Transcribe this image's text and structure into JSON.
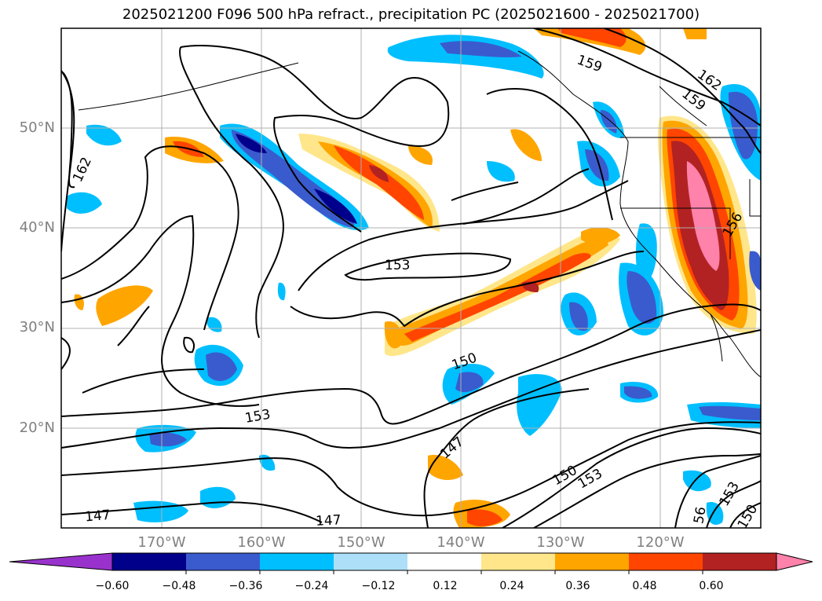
{
  "title": "2025021200 F096 500 hPa refract., precipitation PC (2025021600 - 2025021700)",
  "lon_ticks": [
    "170°W",
    "160°W",
    "150°W",
    "140°W",
    "130°W",
    "120°W"
  ],
  "lat_ticks": [
    "50°N",
    "40°N",
    "30°N",
    "20°N"
  ],
  "colorbar": {
    "labels": [
      "−0.60",
      "−0.48",
      "−0.36",
      "−0.24",
      "−0.12",
      "0.12",
      "0.24",
      "0.36",
      "0.48",
      "0.60"
    ],
    "colors": [
      "#9932CC",
      "#00008B",
      "#3A5BCD",
      "#00BFFF",
      "#ADDFF8",
      "#FFFFFF",
      "#FFE68A",
      "#FFA500",
      "#FF4500",
      "#B22222",
      "#FF82AB"
    ]
  },
  "contour_labels": [
    "159",
    "162",
    "159",
    "162",
    "153",
    "156",
    "150",
    "153",
    "147",
    "150",
    "153",
    "147",
    "153",
    "150",
    "147",
    "56"
  ],
  "map_style": {
    "grid": true,
    "extent": {
      "lon": [
        "180°W",
        "110°W"
      ],
      "lat": [
        "10°N",
        "60°N"
      ]
    },
    "contour_color": "#000000",
    "coastline_color": "#000000"
  }
}
